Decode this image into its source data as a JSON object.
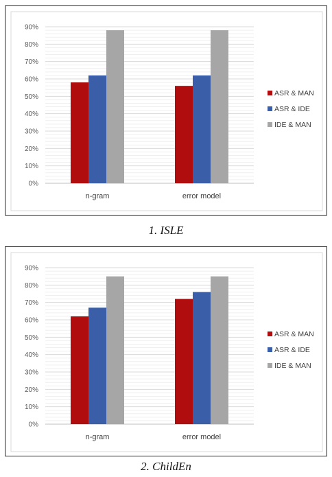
{
  "chart_data": [
    {
      "type": "bar",
      "caption": "1. ISLE",
      "categories": [
        "n-gram",
        "error model"
      ],
      "series": [
        {
          "name": "ASR & MAN",
          "color": "#b00e0e",
          "values": [
            58,
            56
          ]
        },
        {
          "name": "ASR & IDE",
          "color": "#3a5fa8",
          "values": [
            62,
            62
          ]
        },
        {
          "name": "IDE & MAN",
          "color": "#a6a6a6",
          "values": [
            88,
            88
          ]
        }
      ],
      "yticks": [
        "0%",
        "10%",
        "20%",
        "30%",
        "40%",
        "50%",
        "60%",
        "70%",
        "80%",
        "90%"
      ],
      "ylim": [
        0,
        90
      ],
      "grid": true,
      "legend": "right"
    },
    {
      "type": "bar",
      "caption": "2. ChildEn",
      "categories": [
        "n-gram",
        "error model"
      ],
      "series": [
        {
          "name": "ASR & MAN",
          "color": "#b00e0e",
          "values": [
            62,
            72
          ]
        },
        {
          "name": "ASR & IDE",
          "color": "#3a5fa8",
          "values": [
            67,
            76
          ]
        },
        {
          "name": "IDE & MAN",
          "color": "#a6a6a6",
          "values": [
            85,
            85
          ]
        }
      ],
      "yticks": [
        "0%",
        "10%",
        "20%",
        "30%",
        "40%",
        "50%",
        "60%",
        "70%",
        "80%",
        "90%"
      ],
      "ylim": [
        0,
        90
      ],
      "grid": true,
      "legend": "right"
    }
  ]
}
